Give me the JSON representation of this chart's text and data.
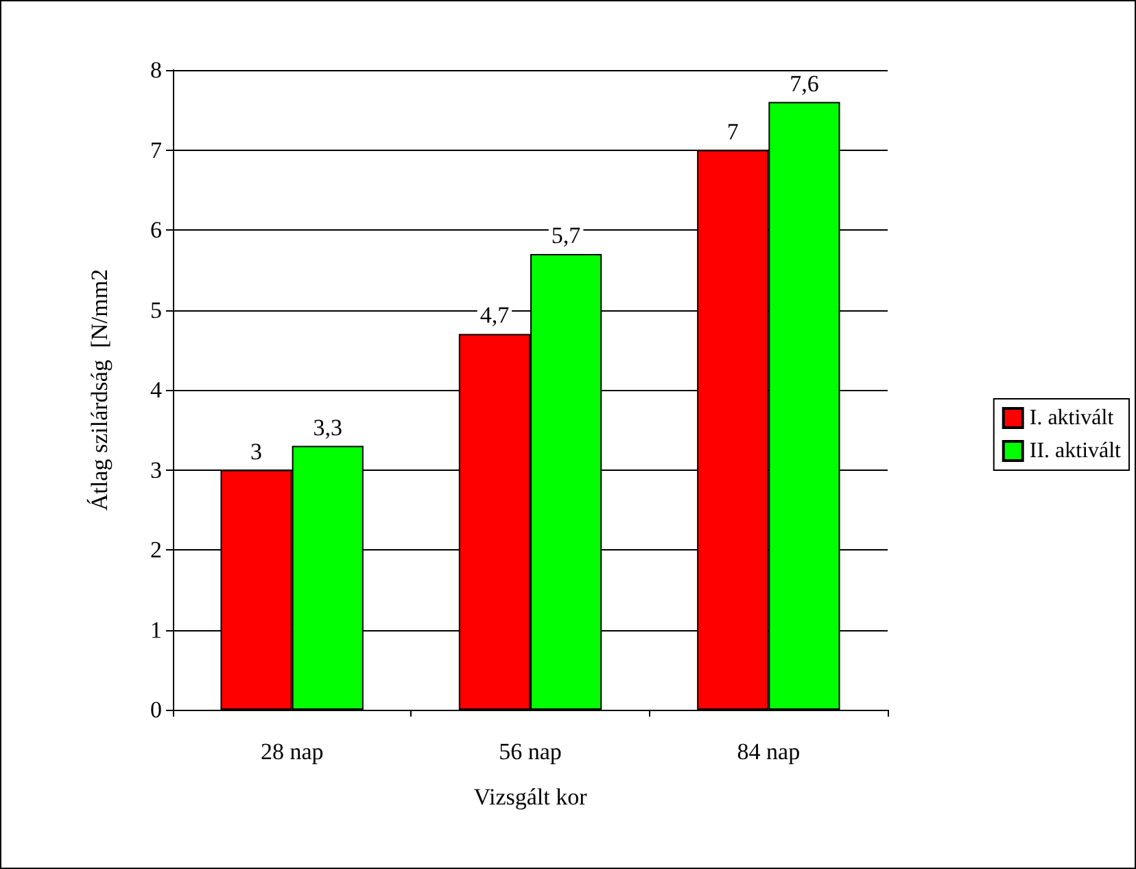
{
  "chart_data": {
    "type": "bar",
    "xlabel": "Vizsgált kor",
    "ylabel": "Átlag szilárdság  [N/mm2",
    "categories": [
      "28 nap",
      "56 nap",
      "84 nap"
    ],
    "series": [
      {
        "name": "I. aktivált",
        "color": "#ff0000",
        "values": [
          3,
          4.7,
          7
        ],
        "value_labels": [
          "3",
          "4,7",
          "7"
        ]
      },
      {
        "name": "II. aktivált",
        "color": "#00ff00",
        "values": [
          3.3,
          5.7,
          7.6
        ],
        "value_labels": [
          "3,3",
          "5,7",
          "7,6"
        ]
      }
    ],
    "ylim": [
      0,
      8
    ],
    "yticks": [
      0,
      1,
      2,
      3,
      4,
      5,
      6,
      7,
      8
    ],
    "grid": "y",
    "legend": "right"
  }
}
